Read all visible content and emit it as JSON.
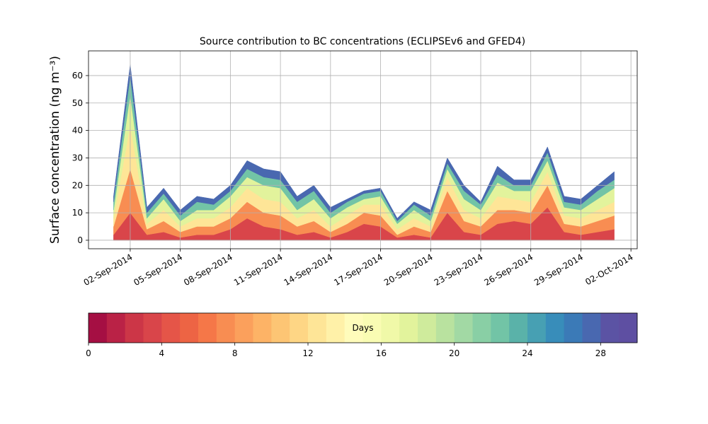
{
  "chart_data": {
    "type": "stacked_area",
    "title": "Source contribution to BC concentrations (ECLIPSEv6 and GFED4)",
    "y_label": "Surface concentration (ng m⁻³)",
    "x": [
      "01-Sep-2014",
      "02-Sep-2014",
      "03-Sep-2014",
      "04-Sep-2014",
      "05-Sep-2014",
      "06-Sep-2014",
      "07-Sep-2014",
      "08-Sep-2014",
      "09-Sep-2014",
      "10-Sep-2014",
      "11-Sep-2014",
      "12-Sep-2014",
      "13-Sep-2014",
      "14-Sep-2014",
      "15-Sep-2014",
      "16-Sep-2014",
      "17-Sep-2014",
      "18-Sep-2014",
      "19-Sep-2014",
      "20-Sep-2014",
      "21-Sep-2014",
      "22-Sep-2014",
      "23-Sep-2014",
      "24-Sep-2014",
      "25-Sep-2014",
      "26-Sep-2014",
      "27-Sep-2014",
      "28-Sep-2014",
      "29-Sep-2014",
      "30-Sep-2014",
      "01-Oct-2014"
    ],
    "series": [
      {
        "color": "#d9454a",
        "values": [
          2,
          10,
          2,
          3,
          1,
          2,
          2,
          4,
          8,
          5,
          4,
          2,
          3,
          1,
          3,
          6,
          5,
          1,
          2,
          1,
          10,
          3,
          2,
          6,
          7,
          6,
          12,
          3,
          2,
          3,
          4
        ]
      },
      {
        "color": "#f88d52",
        "values": [
          3,
          16,
          2,
          4,
          2,
          3,
          3,
          4,
          6,
          5,
          5,
          3,
          4,
          2,
          3,
          4,
          4,
          1,
          3,
          2,
          8,
          4,
          3,
          5,
          4,
          4,
          8,
          3,
          3,
          4,
          5
        ]
      },
      {
        "color": "#fee597",
        "values": [
          3,
          16,
          2,
          4,
          2,
          3,
          3,
          4,
          5,
          5,
          5,
          3,
          4,
          2,
          3,
          3,
          4,
          2,
          3,
          2,
          5,
          4,
          3,
          5,
          4,
          4,
          5,
          3,
          3,
          4,
          5
        ]
      },
      {
        "color": "#e2f39c",
        "values": [
          3,
          11,
          2,
          4,
          2,
          3,
          3,
          4,
          4,
          5,
          5,
          3,
          4,
          3,
          3,
          2,
          3,
          2,
          3,
          2,
          3,
          4,
          3,
          5,
          3,
          4,
          4,
          3,
          3,
          4,
          5
        ]
      },
      {
        "color": "#72c4a6",
        "values": [
          3,
          7,
          2,
          2,
          2,
          3,
          2,
          2,
          3,
          3,
          3,
          3,
          3,
          2,
          2,
          2,
          2,
          1,
          2,
          2,
          2,
          3,
          2,
          3,
          2,
          2,
          3,
          2,
          2,
          3,
          3
        ]
      },
      {
        "color": "#4968b0",
        "values": [
          2,
          4,
          2,
          2,
          2,
          2,
          2,
          2,
          3,
          3,
          3,
          2,
          2,
          2,
          1,
          1,
          1,
          1,
          1,
          2,
          2,
          2,
          1,
          3,
          2,
          2,
          2,
          2,
          2,
          2,
          3
        ]
      }
    ],
    "xlim": [
      "30-Aug-2014 12:00",
      "02-Oct-2014 09:00"
    ],
    "xticks": [
      "02-Sep-2014",
      "05-Sep-2014",
      "08-Sep-2014",
      "11-Sep-2014",
      "14-Sep-2014",
      "17-Sep-2014",
      "20-Sep-2014",
      "23-Sep-2014",
      "26-Sep-2014",
      "29-Sep-2014",
      "02-Oct-2014"
    ],
    "ylim": [
      -3.1,
      69
    ],
    "yticks": [
      0,
      10,
      20,
      30,
      40,
      50,
      60
    ],
    "grid": true,
    "colorbar": {
      "label": "Days",
      "lim": [
        0,
        30
      ],
      "ticks": [
        0,
        4,
        8,
        12,
        16,
        20,
        24,
        28
      ],
      "colors": [
        "#a50f43",
        "#ba2246",
        "#cc3647",
        "#d9454a",
        "#e55548",
        "#ed6444",
        "#f57748",
        "#f88d52",
        "#fba05c",
        "#fdb366",
        "#fdc574",
        "#fed685",
        "#fee597",
        "#fff1a8",
        "#fffcbb",
        "#f9fcb3",
        "#f0f9a8",
        "#e2f39c",
        "#cfeb9c",
        "#b9e29f",
        "#a2d9a4",
        "#89cfa5",
        "#72c4a6",
        "#5ab2a9",
        "#47a0b3",
        "#388dba",
        "#3b7ab7",
        "#4968b0",
        "#5b53a4",
        "#5e4fa2"
      ]
    }
  }
}
